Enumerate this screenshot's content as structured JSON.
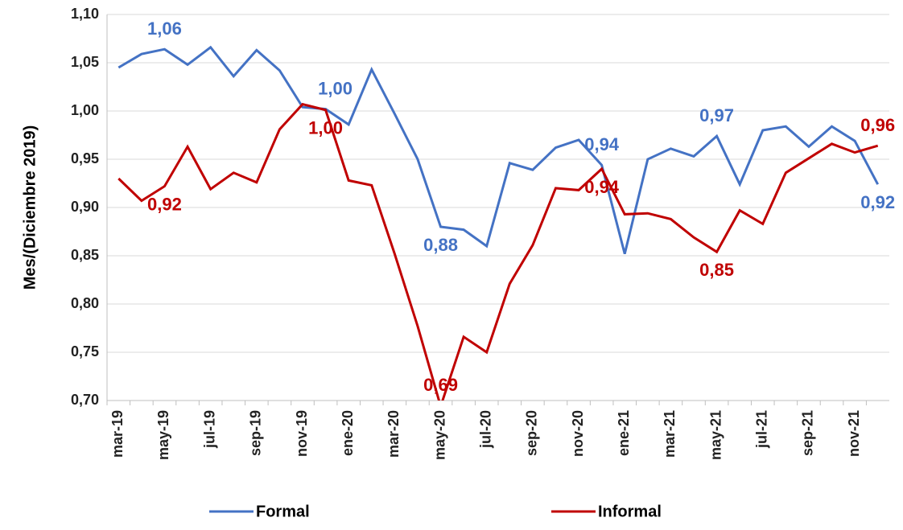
{
  "chart_data": {
    "type": "line",
    "y_label": "Mes/(Diciembre 2019)",
    "categories": [
      "mar-19",
      null,
      "may-19",
      null,
      "jul-19",
      null,
      "sep-19",
      null,
      "nov-19",
      null,
      "ene-20",
      null,
      "mar-20",
      null,
      "may-20",
      null,
      "jul-20",
      null,
      "sep-20",
      null,
      "nov-20",
      null,
      "ene-21",
      null,
      "mar-21",
      null,
      "may-21",
      null,
      "jul-21",
      null,
      "sep-21",
      null,
      "nov-21",
      null
    ],
    "series": [
      {
        "name": "Formal",
        "color": "#4472c4",
        "values": [
          1.045,
          1.059,
          1.064,
          1.048,
          1.066,
          1.036,
          1.063,
          1.042,
          1.004,
          1.002,
          0.986,
          1.043,
          0.997,
          0.95,
          0.88,
          0.877,
          0.86,
          0.946,
          0.939,
          0.962,
          0.97,
          0.944,
          0.852,
          0.95,
          0.961,
          0.953,
          0.974,
          0.924,
          0.98,
          0.984,
          0.963,
          0.984,
          0.969,
          0.924
        ],
        "value_labels": [
          null,
          null,
          "1,06",
          null,
          null,
          null,
          null,
          null,
          null,
          "1,00",
          null,
          null,
          null,
          null,
          "0,88",
          null,
          null,
          null,
          null,
          null,
          null,
          "0,94",
          null,
          null,
          null,
          null,
          "0,97",
          null,
          null,
          null,
          null,
          null,
          null,
          "0,92"
        ]
      },
      {
        "name": "Informal",
        "color": "#c00000",
        "values": [
          0.93,
          0.907,
          0.922,
          0.963,
          0.919,
          0.936,
          0.926,
          0.981,
          1.007,
          1.001,
          0.928,
          0.923,
          0.852,
          0.777,
          0.694,
          0.766,
          0.75,
          0.821,
          0.861,
          0.92,
          0.918,
          0.94,
          0.893,
          0.894,
          0.888,
          0.869,
          0.854,
          0.897,
          0.883,
          0.936,
          0.951,
          0.966,
          0.957,
          0.964
        ],
        "value_labels": [
          null,
          null,
          "0,92",
          null,
          null,
          null,
          null,
          null,
          null,
          "1,00",
          null,
          null,
          null,
          null,
          "0,69",
          null,
          null,
          null,
          null,
          null,
          null,
          "0,94",
          null,
          null,
          null,
          null,
          "0,85",
          null,
          null,
          null,
          null,
          null,
          null,
          "0,96"
        ]
      }
    ],
    "ylim": [
      0.7,
      1.1
    ],
    "yticks": [
      {
        "value": 0.7,
        "label": "0,70"
      },
      {
        "value": 0.75,
        "label": "0,75"
      },
      {
        "value": 0.8,
        "label": "0,80"
      },
      {
        "value": 0.85,
        "label": "0,85"
      },
      {
        "value": 0.9,
        "label": "0,90"
      },
      {
        "value": 0.95,
        "label": "0,95"
      },
      {
        "value": 1.0,
        "label": "1,00"
      },
      {
        "value": 1.05,
        "label": "1,05"
      },
      {
        "value": 1.1,
        "label": "1,10"
      }
    ],
    "grid": true,
    "legend": "bottom"
  }
}
